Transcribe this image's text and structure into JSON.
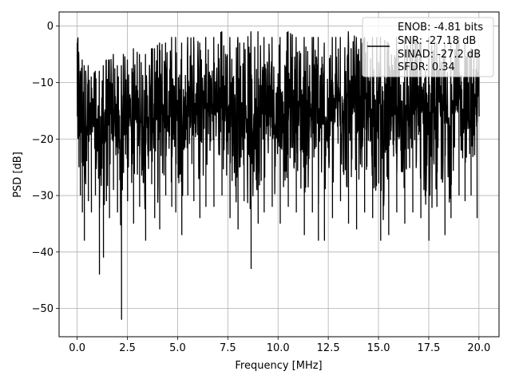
{
  "chart_data": {
    "type": "line",
    "title": "",
    "xlabel": "Frequency [MHz]",
    "ylabel": "PSD [dB]",
    "xlim": [
      -0.9,
      21.0
    ],
    "ylim": [
      -55,
      2.5
    ],
    "xticks": [
      0.0,
      2.5,
      5.0,
      7.5,
      10.0,
      12.5,
      15.0,
      17.5,
      20.0
    ],
    "xtick_labels": [
      "0.0",
      "2.5",
      "5.0",
      "7.5",
      "10.0",
      "12.5",
      "15.0",
      "17.5",
      "20.0"
    ],
    "yticks": [
      0,
      -10,
      -20,
      -30,
      -40,
      -50
    ],
    "ytick_labels": [
      "0",
      "−10",
      "−20",
      "−30",
      "−40",
      "−50"
    ],
    "grid": true,
    "legend": {
      "placement": "top-right",
      "entries": [
        "ENOB: -4.81 bits",
        "SNR: -27.18 dB",
        "SINAD: -27.2 dB",
        "SFDR: 0.34"
      ]
    },
    "series": [
      {
        "color": "#000000",
        "x": [
          0.0,
          0.04,
          0.08,
          0.15,
          0.25,
          0.35,
          0.42,
          0.55,
          0.7,
          0.9,
          1.1,
          1.3,
          1.45,
          1.6,
          1.8,
          2.0,
          2.2,
          2.3,
          2.5,
          2.8,
          3.1,
          3.4,
          3.7,
          3.85,
          4.1,
          4.4,
          4.7,
          4.9,
          5.2,
          5.5,
          5.8,
          6.1,
          6.4,
          6.8,
          7.2,
          7.6,
          8.0,
          8.3,
          8.65,
          9.0,
          9.3,
          9.7,
          10.1,
          10.5,
          10.9,
          11.3,
          11.7,
          12.0,
          12.3,
          12.7,
          13.1,
          13.5,
          13.9,
          14.3,
          14.7,
          15.1,
          15.5,
          15.9,
          16.3,
          16.7,
          17.1,
          17.5,
          17.9,
          18.3,
          18.6,
          19.0,
          19.3,
          19.6,
          19.9,
          20.0
        ],
        "upper": [
          -3,
          -2,
          -5,
          -8,
          -6,
          -7,
          -8,
          -7,
          -9,
          -8,
          -8,
          -7,
          -6,
          -6,
          -5,
          -7,
          -7,
          -5,
          -6,
          -4,
          -5,
          -5,
          -4,
          -4,
          -3,
          -3,
          -2,
          -2,
          -3,
          -2,
          -2,
          -3,
          -2,
          -2,
          -1,
          -2,
          -2,
          -3,
          -1,
          -1,
          -2,
          -2,
          -2,
          -1,
          -2,
          -2,
          -2,
          -2,
          -3,
          -2,
          -2,
          -1,
          -2,
          -2,
          -2,
          -2,
          -3,
          -2,
          -2,
          -2,
          -3,
          -2,
          -3,
          -3,
          -3,
          -2,
          -3,
          -4,
          -4,
          -5
        ],
        "lower": [
          -16,
          -20,
          -25,
          -30,
          -33,
          -38,
          -28,
          -31,
          -33,
          -30,
          -44,
          -41,
          -31,
          -34,
          -29,
          -33,
          -52,
          -26,
          -31,
          -35,
          -32,
          -38,
          -28,
          -34,
          -36,
          -30,
          -32,
          -33,
          -37,
          -30,
          -31,
          -34,
          -32,
          -32,
          -30,
          -34,
          -36,
          -31,
          -43,
          -35,
          -33,
          -32,
          -35,
          -32,
          -33,
          -37,
          -33,
          -38,
          -38,
          -34,
          -31,
          -35,
          -36,
          -33,
          -34,
          -38,
          -37,
          -33,
          -35,
          -33,
          -34,
          -38,
          -32,
          -37,
          -34,
          -30,
          -31,
          -30,
          -34,
          -16
        ]
      }
    ]
  }
}
